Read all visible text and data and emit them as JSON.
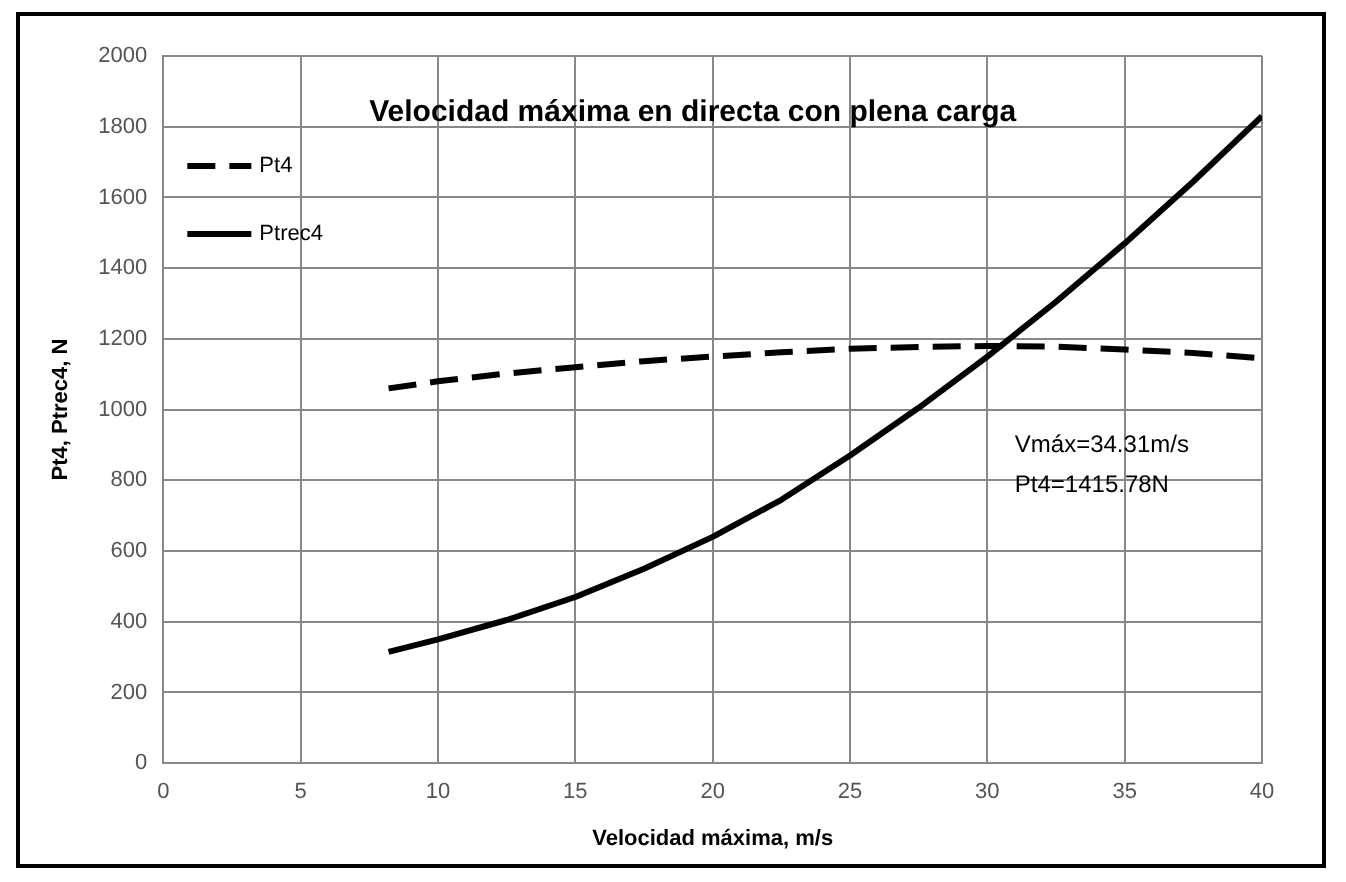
{
  "chart_data": {
    "type": "line",
    "title": "Velocidad máxima en directa con plena carga",
    "xlabel": "Velocidad máxima, m/s",
    "ylabel": "Pt4, Ptrec4, N",
    "x": [
      8.2,
      10,
      12.5,
      15,
      17.5,
      20,
      22.5,
      25,
      27.5,
      30,
      32.5,
      35,
      37.5,
      40
    ],
    "series": [
      {
        "name": "Pt4",
        "color": "#000000",
        "line_style": "dashed",
        "values": [
          1060,
          1080,
          1102,
          1120,
          1137,
          1150,
          1162,
          1172,
          1177,
          1180,
          1178,
          1170,
          1160,
          1145
        ]
      },
      {
        "name": "Ptrec4",
        "color": "#000000",
        "line_style": "solid",
        "values": [
          315,
          350,
          405,
          470,
          550,
          640,
          745,
          870,
          1005,
          1150,
          1305,
          1470,
          1645,
          1830
        ]
      }
    ],
    "xlim": [
      0,
      40
    ],
    "xticks": [
      0,
      5,
      10,
      15,
      20,
      25,
      30,
      35,
      40
    ],
    "ylim": [
      0,
      2000
    ],
    "yticks": [
      0,
      200,
      400,
      600,
      800,
      1000,
      1200,
      1400,
      1600,
      1800,
      2000
    ],
    "grid": true,
    "legend": "top left",
    "marker": "none",
    "annotations": [
      "Vmáx=34.31m/s",
      "Pt4=1415.78N"
    ]
  }
}
